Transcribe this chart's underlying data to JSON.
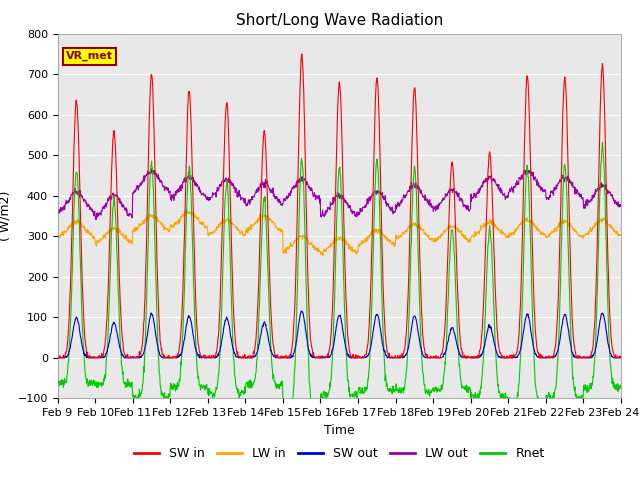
{
  "title": "Short/Long Wave Radiation",
  "xlabel": "Time",
  "ylabel": "( W/m2)",
  "ylim": [
    -100,
    800
  ],
  "yticks": [
    -100,
    0,
    100,
    200,
    300,
    400,
    500,
    600,
    700,
    800
  ],
  "xtick_labels": [
    "Feb 9",
    "Feb 10",
    "Feb 11",
    "Feb 12",
    "Feb 13",
    "Feb 14",
    "Feb 15",
    "Feb 16",
    "Feb 17",
    "Feb 18",
    "Feb 19",
    "Feb 20",
    "Feb 21",
    "Feb 22",
    "Feb 23",
    "Feb 24"
  ],
  "colors": {
    "SW_in": "#ff0000",
    "LW_in": "#ffa500",
    "SW_out": "#0000dd",
    "LW_out": "#9900aa",
    "Rnet": "#00cc00"
  },
  "legend_labels": [
    "SW in",
    "LW in",
    "SW out",
    "LW out",
    "Rnet"
  ],
  "annotation_text": "VR_met",
  "annotation_bg": "#ffff00",
  "annotation_border": "#8b0000",
  "background_color": "#e8e8e8",
  "title_fontsize": 11,
  "label_fontsize": 9,
  "tick_fontsize": 8
}
